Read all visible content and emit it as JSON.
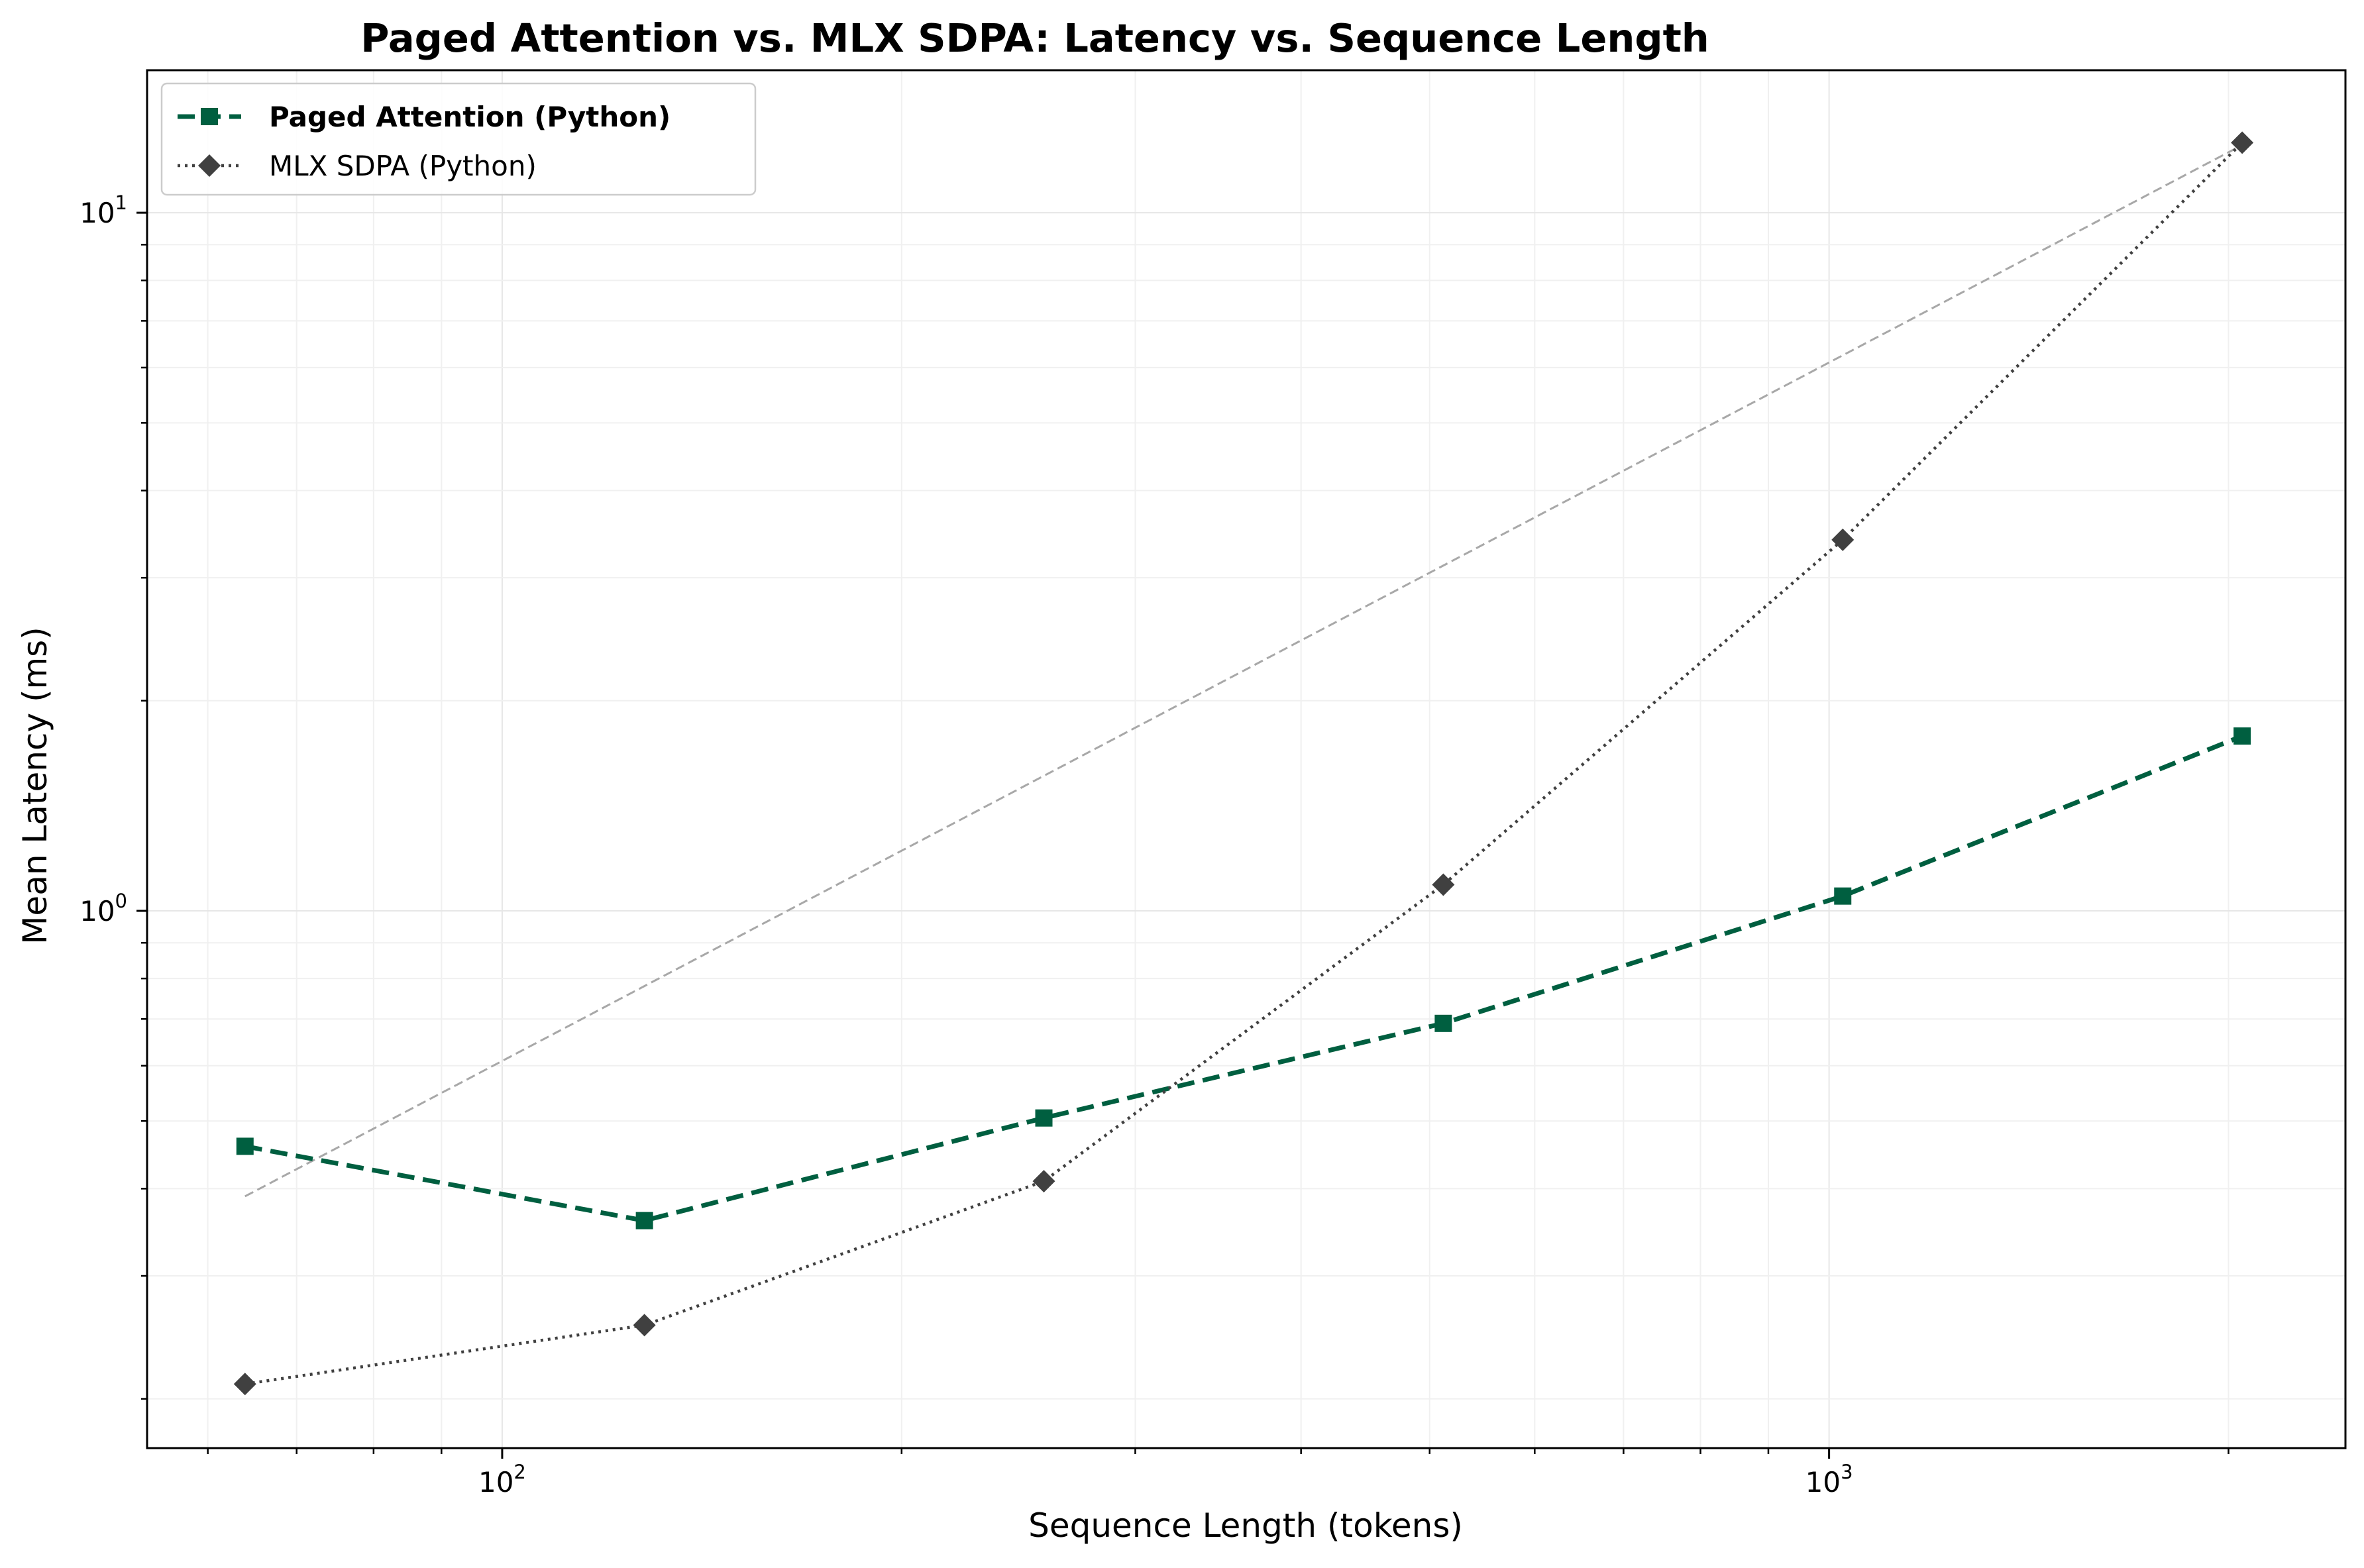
{
  "chart_data": {
    "type": "line",
    "title": "Paged Attention vs. MLX SDPA: Latency vs. Sequence Length",
    "xlabel": "Sequence Length (tokens)",
    "ylabel": "Mean Latency (ms)",
    "xscale": "log",
    "yscale": "log",
    "xlim": [
      54,
      2450
    ],
    "ylim": [
      0.17,
      16.0
    ],
    "xticks": [
      {
        "base": "10",
        "exp": "2",
        "value": 100
      },
      {
        "base": "10",
        "exp": "3",
        "value": 1000
      }
    ],
    "yticks": [
      {
        "base": "10",
        "exp": "0",
        "value": 1
      },
      {
        "base": "10",
        "exp": "1",
        "value": 10
      }
    ],
    "grid": true,
    "legend_position": "top-left",
    "series": [
      {
        "name": "Paged Attention (Python)",
        "color": "#005f40",
        "linestyle": "dashed",
        "marker": "square",
        "bold_label": true,
        "x": [
          64,
          128,
          256,
          512,
          1024,
          2048
        ],
        "y": [
          0.46,
          0.36,
          0.505,
          0.69,
          1.05,
          1.78
        ]
      },
      {
        "name": "MLX SDPA (Python)",
        "color": "#404040",
        "linestyle": "dotted",
        "marker": "diamond",
        "bold_label": false,
        "x": [
          64,
          128,
          256,
          512,
          1024,
          2048
        ],
        "y": [
          0.21,
          0.255,
          0.41,
          1.09,
          3.4,
          12.6
        ]
      }
    ],
    "reference_line": {
      "color": "#a8a8a8",
      "linestyle": "dashed",
      "x": [
        64,
        2048
      ],
      "y": [
        0.39,
        12.5
      ]
    }
  }
}
